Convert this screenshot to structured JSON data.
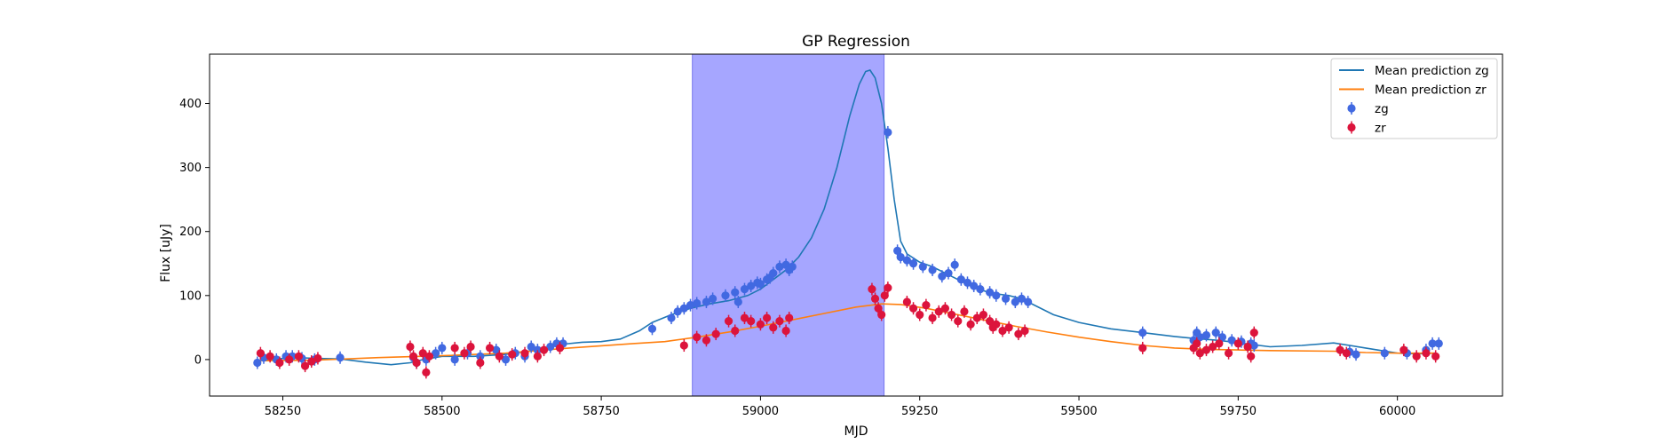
{
  "chart_data": {
    "type": "scatter",
    "title": "GP Regression",
    "xlabel": "MJD",
    "ylabel": "Flux [uJy]",
    "xlim": [
      58135,
      60165
    ],
    "ylim": [
      -57,
      477
    ],
    "xticks": [
      58250,
      58500,
      58750,
      59000,
      59250,
      59500,
      59750,
      60000
    ],
    "yticks": [
      0,
      100,
      200,
      300,
      400
    ],
    "grid": false,
    "legend_position": "top-right",
    "shaded_region": {
      "x0": 58893,
      "x1": 59194,
      "color": "#a6a6ff"
    },
    "series": [
      {
        "name": "Mean prediction zg",
        "kind": "line",
        "color": "#1f77b4",
        "x": [
          58210,
          58240,
          58270,
          58300,
          58340,
          58380,
          58420,
          58450,
          58470,
          58500,
          58550,
          58600,
          58650,
          58690,
          58720,
          58750,
          58780,
          58810,
          58830,
          58860,
          58890,
          58920,
          58950,
          58980,
          59000,
          59020,
          59040,
          59060,
          59080,
          59100,
          59120,
          59140,
          59155,
          59165,
          59172,
          59180,
          59190,
          59200,
          59210,
          59220,
          59230,
          59250,
          59270,
          59300,
          59330,
          59360,
          59390,
          59410,
          59430,
          59460,
          59500,
          59550,
          59600,
          59650,
          59680,
          59720,
          59760,
          59800,
          59850,
          59900,
          59950,
          60000,
          60030,
          60060
        ],
        "y": [
          -2,
          1,
          3,
          2,
          1,
          -4,
          -8,
          -5,
          0,
          5,
          5,
          8,
          15,
          24,
          27,
          28,
          32,
          45,
          58,
          70,
          80,
          87,
          92,
          100,
          110,
          125,
          140,
          160,
          190,
          235,
          300,
          380,
          430,
          450,
          452,
          440,
          400,
          330,
          250,
          185,
          165,
          152,
          145,
          130,
          115,
          104,
          100,
          95,
          85,
          70,
          58,
          48,
          42,
          36,
          33,
          30,
          25,
          20,
          22,
          26,
          18,
          10,
          9,
          10
        ]
      },
      {
        "name": "Mean prediction zr",
        "kind": "line",
        "color": "#ff7f0e",
        "x": [
          58210,
          58300,
          58400,
          58500,
          58600,
          58700,
          58800,
          58850,
          58900,
          58950,
          59000,
          59050,
          59100,
          59150,
          59190,
          59220,
          59260,
          59300,
          59350,
          59400,
          59450,
          59500,
          59550,
          59600,
          59650,
          59700,
          59750,
          59800,
          59900,
          59950,
          60000,
          60060
        ],
        "y": [
          -2,
          -1,
          3,
          6,
          10,
          18,
          25,
          28,
          35,
          43,
          52,
          62,
          72,
          82,
          87,
          86,
          80,
          72,
          62,
          52,
          43,
          35,
          28,
          22,
          18,
          16,
          15,
          14,
          13,
          11,
          10,
          10
        ]
      },
      {
        "name": "zg",
        "kind": "points",
        "color": "#4169e1",
        "x": [
          58210,
          58220,
          58240,
          58255,
          58265,
          58280,
          58300,
          58340,
          58455,
          58460,
          58475,
          58490,
          58500,
          58520,
          58540,
          58560,
          58585,
          58600,
          58615,
          58630,
          58640,
          58650,
          58670,
          58680,
          58690,
          58830,
          58860,
          58870,
          58880,
          58890,
          58900,
          58915,
          58925,
          58945,
          58960,
          58965,
          58975,
          58985,
          58995,
          59000,
          59010,
          59015,
          59020,
          59030,
          59040,
          59045,
          59050,
          59200,
          59215,
          59220,
          59230,
          59240,
          59255,
          59270,
          59285,
          59295,
          59305,
          59315,
          59325,
          59335,
          59345,
          59360,
          59370,
          59385,
          59400,
          59410,
          59420,
          59600,
          59680,
          59685,
          59690,
          59700,
          59715,
          59725,
          59740,
          59755,
          59770,
          59775,
          59925,
          59935,
          59980,
          60015,
          60045,
          60055,
          60065
        ],
        "y": [
          -5,
          3,
          0,
          5,
          5,
          2,
          0,
          3,
          3,
          -5,
          0,
          10,
          18,
          0,
          10,
          5,
          15,
          0,
          10,
          5,
          20,
          15,
          20,
          25,
          25,
          48,
          65,
          75,
          80,
          85,
          88,
          90,
          95,
          100,
          105,
          90,
          110,
          115,
          120,
          118,
          125,
          128,
          135,
          145,
          148,
          140,
          145,
          355,
          170,
          160,
          155,
          150,
          145,
          140,
          130,
          135,
          148,
          125,
          120,
          115,
          110,
          105,
          100,
          95,
          90,
          95,
          90,
          42,
          30,
          42,
          35,
          38,
          42,
          35,
          30,
          28,
          25,
          22,
          12,
          8,
          10,
          10,
          15,
          25,
          25
        ]
      },
      {
        "name": "zr",
        "kind": "points",
        "color": "#dc143c",
        "x": [
          58215,
          58230,
          58245,
          58260,
          58275,
          58285,
          58295,
          58305,
          58450,
          58455,
          58460,
          58470,
          58475,
          58480,
          58520,
          58535,
          58545,
          58560,
          58575,
          58590,
          58610,
          58630,
          58650,
          58660,
          58685,
          58880,
          58900,
          58915,
          58930,
          58950,
          58960,
          58975,
          58985,
          59000,
          59010,
          59020,
          59030,
          59040,
          59045,
          59175,
          59180,
          59185,
          59190,
          59195,
          59200,
          59230,
          59240,
          59250,
          59260,
          59270,
          59280,
          59290,
          59300,
          59310,
          59320,
          59330,
          59340,
          59350,
          59360,
          59365,
          59370,
          59380,
          59390,
          59405,
          59415,
          59600,
          59680,
          59685,
          59690,
          59700,
          59710,
          59720,
          59735,
          59750,
          59765,
          59770,
          59775,
          59910,
          59920,
          60010,
          60030,
          60045,
          60060
        ],
        "y": [
          10,
          5,
          -5,
          0,
          5,
          -10,
          -3,
          2,
          20,
          5,
          -5,
          10,
          -20,
          5,
          18,
          10,
          20,
          -5,
          18,
          5,
          8,
          10,
          5,
          15,
          18,
          22,
          35,
          30,
          40,
          60,
          45,
          65,
          60,
          55,
          65,
          50,
          60,
          45,
          65,
          110,
          95,
          80,
          70,
          100,
          112,
          90,
          80,
          70,
          85,
          65,
          75,
          80,
          70,
          60,
          75,
          55,
          65,
          70,
          60,
          50,
          55,
          45,
          50,
          40,
          45,
          18,
          18,
          25,
          10,
          15,
          20,
          25,
          10,
          25,
          20,
          5,
          42,
          15,
          10,
          15,
          5,
          10,
          5
        ]
      }
    ],
    "legend": [
      "Mean prediction zg",
      "Mean prediction zr",
      "zg",
      "zr"
    ]
  }
}
